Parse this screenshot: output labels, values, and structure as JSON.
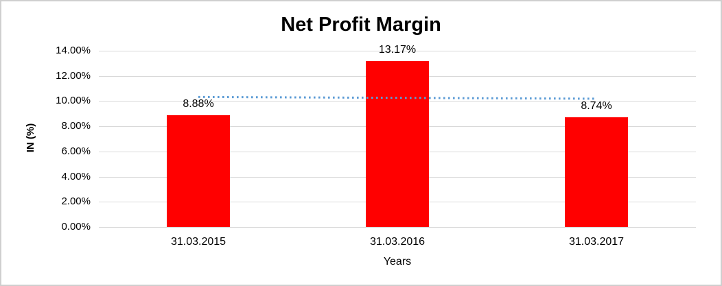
{
  "chart_data": {
    "type": "bar",
    "title": "Net Profit Margin",
    "xlabel": "Years",
    "ylabel": "IN (%)",
    "categories": [
      "31.03.2015",
      "31.03.2016",
      "31.03.2017"
    ],
    "values": [
      8.88,
      13.17,
      8.74
    ],
    "data_labels": [
      "8.88%",
      "13.17%",
      "8.74%"
    ],
    "ylim": [
      0,
      14
    ],
    "ytick_step": 2,
    "ytick_labels": [
      "0.00%",
      "2.00%",
      "4.00%",
      "6.00%",
      "8.00%",
      "10.00%",
      "12.00%",
      "14.00%"
    ],
    "grid": true,
    "legend": "none",
    "bar_color": "#ff0000",
    "gridline_color": "#d9d9d9",
    "frame_border_color": "#cfcfcf",
    "trendline": {
      "fit": "linear",
      "style": "dotted",
      "color": "#5b9bd5",
      "start_value": 10.33,
      "end_value": 10.19
    }
  }
}
